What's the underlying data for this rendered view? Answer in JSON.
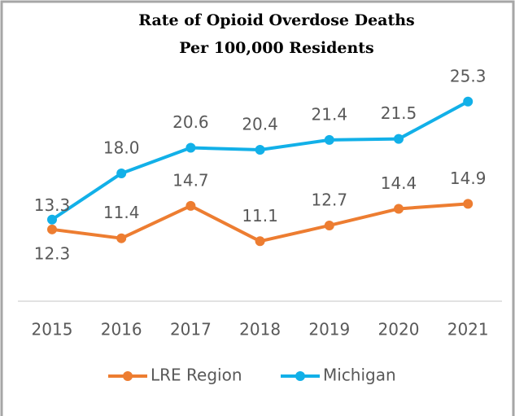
{
  "chart_data": {
    "type": "line",
    "title": [
      "Rate of Opioid Overdose Deaths",
      "Per 100,000 Residents"
    ],
    "categories": [
      "2015",
      "2016",
      "2017",
      "2018",
      "2019",
      "2020",
      "2021"
    ],
    "series": [
      {
        "name": "LRE Region",
        "color": "#ed7d31",
        "values": [
          12.3,
          11.4,
          14.7,
          11.1,
          12.7,
          14.4,
          14.9
        ],
        "value_labels": [
          "12.3",
          "11.4",
          "14.7",
          "11.1",
          "12.7",
          "14.4",
          "14.9"
        ]
      },
      {
        "name": "Michigan",
        "color": "#12b0e8",
        "values": [
          13.3,
          18.0,
          20.6,
          20.4,
          21.4,
          21.5,
          25.3
        ],
        "value_labels": [
          "13.3",
          "18.0",
          "20.6",
          "20.4",
          "21.4",
          "21.5",
          "25.3"
        ]
      }
    ],
    "ylim": [
      5,
      30
    ],
    "legend": "bottom"
  }
}
